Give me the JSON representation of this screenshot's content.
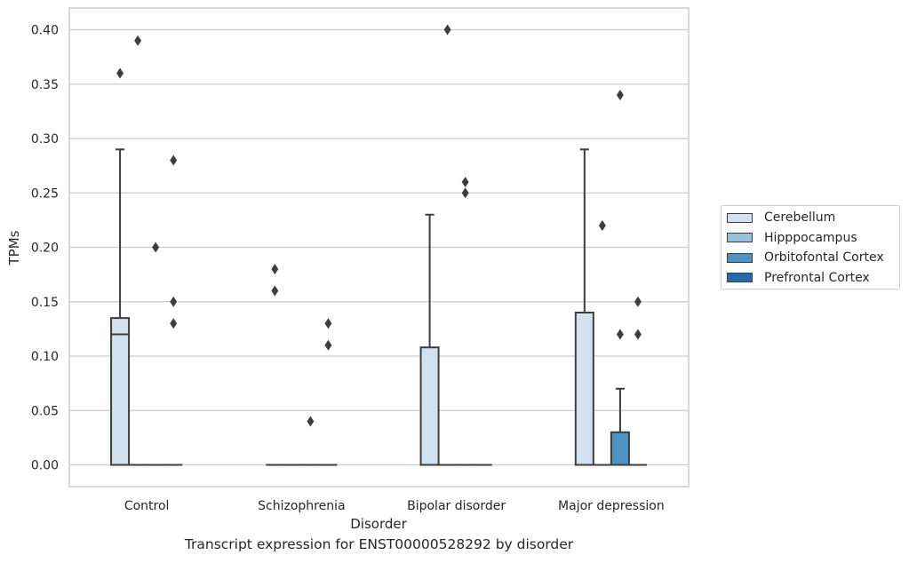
{
  "chart_data": {
    "type": "box",
    "xlabel": "Disorder",
    "ylabel": "TPMs",
    "caption": "Transcript expression for ENST00000528292 by disorder",
    "ylim": [
      -0.02,
      0.42
    ],
    "yticks": [
      "0.00",
      "0.05",
      "0.10",
      "0.15",
      "0.20",
      "0.25",
      "0.30",
      "0.35",
      "0.40"
    ],
    "grid": "horizontal",
    "legend_position": "right",
    "categories": [
      "Control",
      "Schizophrenia",
      "Bipolar disorder",
      "Major depression"
    ],
    "series": [
      {
        "name": "Cerebellum",
        "color": "#d1e1f0",
        "boxes": [
          {
            "q1": 0.0,
            "median": 0.12,
            "q3": 0.135,
            "whisker_low": 0.0,
            "whisker_high": 0.29,
            "outliers": [
              0.36
            ]
          },
          {
            "q1": 0.0,
            "median": 0.0,
            "q3": 0.0,
            "whisker_low": 0.0,
            "whisker_high": 0.0,
            "outliers": [
              0.16,
              0.18
            ]
          },
          {
            "q1": 0.0,
            "median": 0.0,
            "q3": 0.108,
            "whisker_low": 0.0,
            "whisker_high": 0.23,
            "outliers": []
          },
          {
            "q1": 0.0,
            "median": 0.0,
            "q3": 0.14,
            "whisker_low": 0.0,
            "whisker_high": 0.29,
            "outliers": []
          }
        ]
      },
      {
        "name": "Hipppocampus",
        "color": "#9ac2dc",
        "boxes": [
          {
            "q1": 0.0,
            "median": 0.0,
            "q3": 0.0,
            "whisker_low": 0.0,
            "whisker_high": 0.0,
            "outliers": [
              0.39
            ]
          },
          {
            "q1": 0.0,
            "median": 0.0,
            "q3": 0.0,
            "whisker_low": 0.0,
            "whisker_high": 0.0,
            "outliers": []
          },
          {
            "q1": 0.0,
            "median": 0.0,
            "q3": 0.0,
            "whisker_low": 0.0,
            "whisker_high": 0.0,
            "outliers": [
              0.4
            ]
          },
          {
            "q1": 0.0,
            "median": 0.0,
            "q3": 0.0,
            "whisker_low": 0.0,
            "whisker_high": 0.0,
            "outliers": [
              0.22
            ]
          }
        ]
      },
      {
        "name": "Orbitofontal Cortex",
        "color": "#4f92c3",
        "boxes": [
          {
            "q1": 0.0,
            "median": 0.0,
            "q3": 0.0,
            "whisker_low": 0.0,
            "whisker_high": 0.0,
            "outliers": [
              0.2
            ]
          },
          {
            "q1": 0.0,
            "median": 0.0,
            "q3": 0.0,
            "whisker_low": 0.0,
            "whisker_high": 0.0,
            "outliers": [
              0.04
            ]
          },
          {
            "q1": 0.0,
            "median": 0.0,
            "q3": 0.0,
            "whisker_low": 0.0,
            "whisker_high": 0.0,
            "outliers": [
              0.25,
              0.26
            ]
          },
          {
            "q1": 0.0,
            "median": 0.0,
            "q3": 0.03,
            "whisker_low": 0.0,
            "whisker_high": 0.07,
            "outliers": [
              0.12,
              0.34
            ]
          }
        ]
      },
      {
        "name": "Prefrontal Cortex",
        "color": "#2a69a6",
        "boxes": [
          {
            "q1": 0.0,
            "median": 0.0,
            "q3": 0.0,
            "whisker_low": 0.0,
            "whisker_high": 0.0,
            "outliers": [
              0.13,
              0.15,
              0.28
            ]
          },
          {
            "q1": 0.0,
            "median": 0.0,
            "q3": 0.0,
            "whisker_low": 0.0,
            "whisker_high": 0.0,
            "outliers": [
              0.11,
              0.13
            ]
          },
          {
            "q1": 0.0,
            "median": 0.0,
            "q3": 0.0,
            "whisker_low": 0.0,
            "whisker_high": 0.0,
            "outliers": []
          },
          {
            "q1": 0.0,
            "median": 0.0,
            "q3": 0.0,
            "whisker_low": 0.0,
            "whisker_high": 0.0,
            "outliers": [
              0.12,
              0.15
            ]
          }
        ]
      }
    ]
  }
}
